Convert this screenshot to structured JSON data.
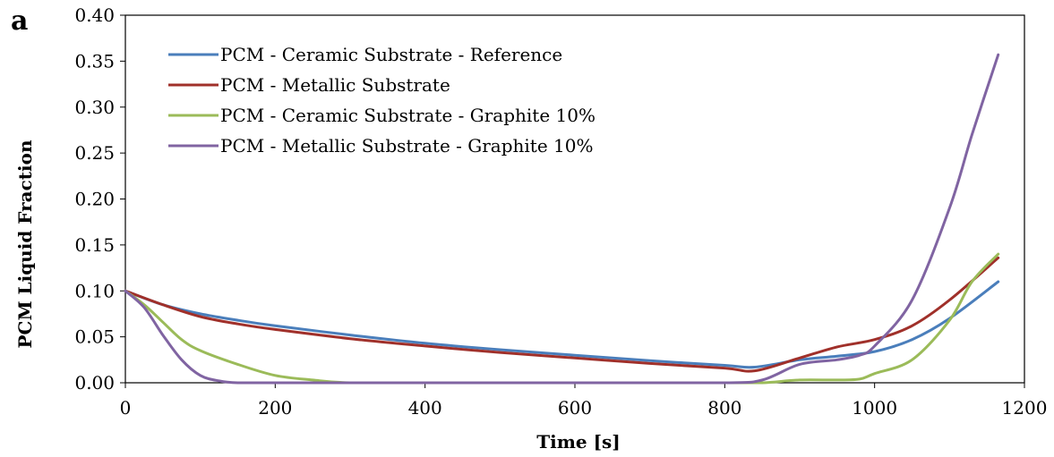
{
  "chart_data": {
    "type": "line",
    "panel_label": "a",
    "title": "",
    "xlabel": "Time [s]",
    "ylabel": "PCM Liquid Fraction",
    "xlim": [
      0,
      1200
    ],
    "ylim": [
      0,
      0.4
    ],
    "x_ticks": [
      "0",
      "200",
      "400",
      "600",
      "800",
      "1000",
      "1200"
    ],
    "y_ticks": [
      "0.00",
      "0.05",
      "0.10",
      "0.15",
      "0.20",
      "0.25",
      "0.30",
      "0.35",
      "0.40"
    ],
    "grid": false,
    "legend_position": "top-left",
    "series": [
      {
        "name": "PCM - Ceramic Substrate - Reference",
        "color": "#4a7ebb",
        "x": [
          0,
          50,
          100,
          150,
          200,
          300,
          400,
          500,
          600,
          700,
          800,
          840,
          900,
          950,
          1000,
          1050,
          1100,
          1165
        ],
        "y": [
          0.1,
          0.085,
          0.075,
          0.068,
          0.062,
          0.052,
          0.043,
          0.036,
          0.03,
          0.024,
          0.019,
          0.017,
          0.025,
          0.029,
          0.034,
          0.047,
          0.07,
          0.11
        ]
      },
      {
        "name": "PCM - Metallic Substrate",
        "color": "#a0302a",
        "x": [
          0,
          50,
          100,
          150,
          200,
          300,
          400,
          500,
          600,
          700,
          800,
          840,
          900,
          950,
          1000,
          1050,
          1100,
          1165
        ],
        "y": [
          0.1,
          0.085,
          0.072,
          0.064,
          0.058,
          0.048,
          0.04,
          0.033,
          0.027,
          0.021,
          0.016,
          0.013,
          0.027,
          0.039,
          0.047,
          0.062,
          0.09,
          0.136
        ]
      },
      {
        "name": "PCM - Ceramic Substrate - Graphite 10%",
        "color": "#9bbb59",
        "x": [
          0,
          25,
          50,
          75,
          100,
          150,
          200,
          250,
          300,
          400,
          600,
          800,
          850,
          900,
          950,
          980,
          1000,
          1050,
          1100,
          1130,
          1165
        ],
        "y": [
          0.1,
          0.085,
          0.066,
          0.047,
          0.035,
          0.02,
          0.008,
          0.003,
          0.0,
          0.0,
          0.0,
          0.0,
          0.0,
          0.003,
          0.003,
          0.004,
          0.01,
          0.025,
          0.068,
          0.11,
          0.14
        ]
      },
      {
        "name": "PCM - Metallic Substrate - Graphite 10%",
        "color": "#8064a2",
        "x": [
          0,
          25,
          50,
          75,
          100,
          125,
          150,
          200,
          400,
          600,
          800,
          850,
          900,
          950,
          980,
          1000,
          1050,
          1100,
          1130,
          1165
        ],
        "y": [
          0.1,
          0.082,
          0.052,
          0.025,
          0.008,
          0.002,
          0.0,
          0.0,
          0.0,
          0.0,
          0.0,
          0.003,
          0.02,
          0.025,
          0.03,
          0.04,
          0.09,
          0.19,
          0.27,
          0.357
        ]
      }
    ]
  }
}
